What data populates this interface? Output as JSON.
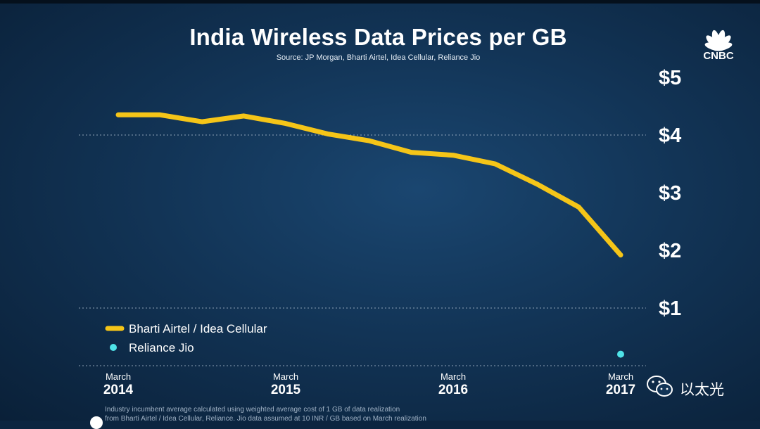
{
  "header": {
    "title": "India Wireless Data Prices per GB",
    "source": "Source: JP Morgan, Bharti Airtel, Idea Cellular, Reliance Jio"
  },
  "brand": {
    "name": "CNBC",
    "watermark": "以太光"
  },
  "footnote": {
    "line1": "Industry incumbent average calculated using weighted average cost of 1 GB of data realization",
    "line2": "from Bharti Airtel / Idea Cellular, Reliance. Jio data assumed at 10 INR / GB based on March realization"
  },
  "colors": {
    "series_line": "#f5c518",
    "jio_dot": "#4fe3e8",
    "gridline": "#b8c8d8",
    "background": "#123456"
  },
  "chart_data": {
    "type": "line",
    "title": "India Wireless Data Prices per GB",
    "ylim": [
      0,
      5
    ],
    "yticks": [
      {
        "value": 5,
        "label": "$5"
      },
      {
        "value": 4,
        "label": "$4"
      },
      {
        "value": 3,
        "label": "$3"
      },
      {
        "value": 2,
        "label": "$2"
      },
      {
        "value": 1,
        "label": "$1"
      }
    ],
    "gridlines": [
      4,
      1,
      0
    ],
    "xlim": [
      2014,
      2017
    ],
    "xticks": [
      {
        "value": 2014,
        "month": "March",
        "year": "2014"
      },
      {
        "value": 2015,
        "month": "March",
        "year": "2015"
      },
      {
        "value": 2016,
        "month": "March",
        "year": "2016"
      },
      {
        "value": 2017,
        "month": "March",
        "year": "2017"
      }
    ],
    "series": [
      {
        "name": "Bharti Airtel / Idea Cellular",
        "x": [
          2014.0,
          2014.25,
          2014.5,
          2014.75,
          2015.0,
          2015.25,
          2015.5,
          2015.75,
          2016.0,
          2016.25,
          2016.5,
          2016.75,
          2017.0
        ],
        "values": [
          4.35,
          4.35,
          4.23,
          4.33,
          4.2,
          4.02,
          3.9,
          3.7,
          3.65,
          3.5,
          3.15,
          2.75,
          1.92
        ]
      },
      {
        "name": "Reliance Jio",
        "x": [
          2017.0
        ],
        "values": [
          0.2
        ]
      }
    ],
    "legend": [
      {
        "name": "Bharti Airtel / Idea Cellular",
        "marker": "line"
      },
      {
        "name": "Reliance Jio",
        "marker": "dot"
      }
    ]
  }
}
